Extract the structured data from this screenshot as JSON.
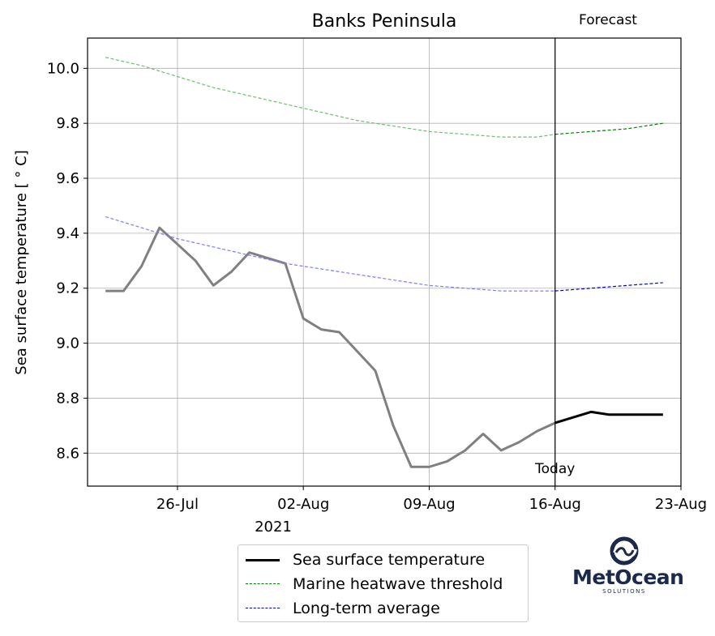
{
  "chart_data": {
    "type": "line",
    "title": "Banks Peninsula",
    "ylabel": "Sea surface temperature [$^\\circ$C]",
    "ylabel_display": "Sea surface temperature [ ° C]",
    "xlabel": "",
    "ylim": [
      8.48,
      10.11
    ],
    "xlim": [
      "2021-07-21",
      "2021-08-23"
    ],
    "yticks": [
      8.6,
      8.8,
      9.0,
      9.2,
      9.4,
      9.6,
      9.8,
      10.0
    ],
    "ytick_labels": [
      "8.6",
      "8.8",
      "9.0",
      "9.2",
      "9.4",
      "9.6",
      "9.8",
      "10.0"
    ],
    "xticks": [
      "2021-07-26",
      "2021-08-02",
      "2021-08-09",
      "2021-08-16",
      "2021-08-23"
    ],
    "xtick_labels": [
      "26-Jul",
      "02-Aug",
      "09-Aug",
      "16-Aug",
      "23-Aug"
    ],
    "xtick_year_label": "2021",
    "grid": true,
    "legend_position": "below-center",
    "today": "2021-08-16",
    "annotations": {
      "today": "Today",
      "forecast": "Forecast"
    },
    "series": [
      {
        "name": "Sea surface temperature",
        "color": "#000000",
        "history_color": "#808080",
        "style": "solid",
        "x": [
          "2021-07-22",
          "2021-07-23",
          "2021-07-24",
          "2021-07-25",
          "2021-07-26",
          "2021-07-27",
          "2021-07-28",
          "2021-07-29",
          "2021-07-30",
          "2021-07-31",
          "2021-08-01",
          "2021-08-02",
          "2021-08-03",
          "2021-08-04",
          "2021-08-05",
          "2021-08-06",
          "2021-08-07",
          "2021-08-08",
          "2021-08-09",
          "2021-08-10",
          "2021-08-11",
          "2021-08-12",
          "2021-08-13",
          "2021-08-14",
          "2021-08-15",
          "2021-08-16",
          "2021-08-17",
          "2021-08-18",
          "2021-08-19",
          "2021-08-20",
          "2021-08-21",
          "2021-08-22"
        ],
        "values": [
          9.19,
          9.19,
          9.28,
          9.42,
          9.36,
          9.3,
          9.21,
          9.26,
          9.33,
          9.31,
          9.29,
          9.09,
          9.05,
          9.04,
          8.97,
          8.9,
          8.7,
          8.55,
          8.55,
          8.57,
          8.61,
          8.67,
          8.61,
          8.64,
          8.68,
          8.71,
          8.73,
          8.75,
          8.74,
          8.74,
          8.74,
          8.74
        ]
      },
      {
        "name": "Marine heatwave threshold",
        "color": "#008000",
        "history_color": "#6cbf6c",
        "style": "dashed",
        "x": [
          "2021-07-22",
          "2021-07-24",
          "2021-07-26",
          "2021-07-28",
          "2021-07-30",
          "2021-08-01",
          "2021-08-03",
          "2021-08-05",
          "2021-08-07",
          "2021-08-09",
          "2021-08-11",
          "2021-08-13",
          "2021-08-15",
          "2021-08-16",
          "2021-08-18",
          "2021-08-20",
          "2021-08-22"
        ],
        "values": [
          10.04,
          10.01,
          9.97,
          9.93,
          9.9,
          9.87,
          9.84,
          9.81,
          9.79,
          9.77,
          9.76,
          9.75,
          9.75,
          9.76,
          9.77,
          9.78,
          9.8
        ]
      },
      {
        "name": "Long-term average",
        "color": "#0000cc",
        "history_color": "#7b7bff",
        "style": "dashed",
        "x": [
          "2021-07-22",
          "2021-07-24",
          "2021-07-26",
          "2021-07-28",
          "2021-07-30",
          "2021-08-01",
          "2021-08-03",
          "2021-08-05",
          "2021-08-07",
          "2021-08-09",
          "2021-08-11",
          "2021-08-13",
          "2021-08-15",
          "2021-08-16",
          "2021-08-18",
          "2021-08-20",
          "2021-08-22"
        ],
        "values": [
          9.46,
          9.42,
          9.38,
          9.35,
          9.32,
          9.29,
          9.27,
          9.25,
          9.23,
          9.21,
          9.2,
          9.19,
          9.19,
          9.19,
          9.2,
          9.21,
          9.22
        ]
      }
    ]
  },
  "legend": {
    "items": [
      {
        "label": "Sea surface temperature",
        "color": "#000000",
        "style": "solid"
      },
      {
        "label": "Marine heatwave threshold",
        "color": "#008000",
        "style": "dashed"
      },
      {
        "label": "Long-term average",
        "color": "#0000cc",
        "style": "dashed"
      }
    ]
  },
  "logo": {
    "name": "MetOcean",
    "subtitle": "SOLUTIONS",
    "icon": "metocean-wave-icon",
    "color": "#1b2a4a"
  }
}
